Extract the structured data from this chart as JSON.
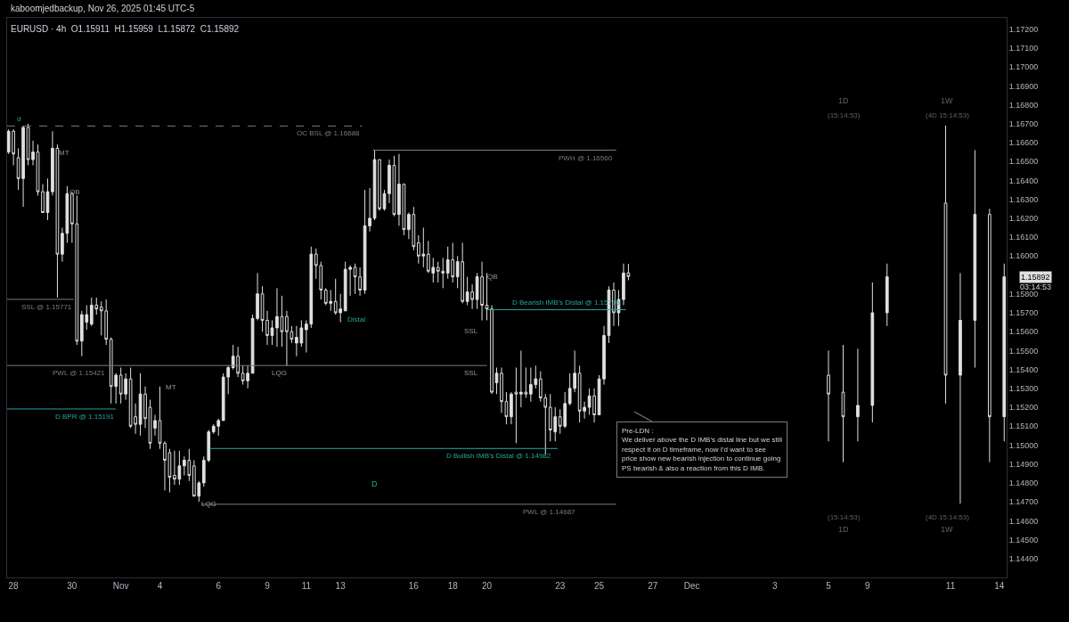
{
  "chart_data": {
    "type": "candlestick",
    "title": "EURUSD · 4h",
    "subtitle": "O1.15911  H1.15959  L1.15872  C1.15892",
    "categories": [
      null,
      "28",
      null,
      null,
      null,
      null,
      null,
      null,
      null,
      null,
      null,
      null,
      null,
      "30",
      null,
      null,
      null,
      null,
      null,
      null,
      null,
      null,
      null,
      "Nov",
      null,
      null,
      null,
      null,
      null,
      null,
      null,
      "4",
      null,
      null,
      null,
      null,
      null,
      null,
      null,
      null,
      null,
      null,
      null,
      "6",
      null,
      null,
      null,
      null,
      null,
      null,
      null,
      null,
      null,
      "9",
      null,
      null,
      null,
      null,
      null,
      null,
      null,
      "11",
      null,
      null,
      null,
      null,
      null,
      null,
      "13",
      null,
      null,
      null,
      null,
      null,
      null,
      null,
      null,
      null,
      null,
      null,
      null,
      null,
      null,
      "16",
      null,
      null,
      null,
      null,
      null,
      null,
      null,
      "18",
      null,
      null,
      null,
      null,
      null,
      null,
      "20",
      null,
      null,
      null,
      null,
      null,
      null,
      null,
      null,
      null,
      null,
      null,
      null,
      null,
      null,
      "23",
      null,
      null,
      null,
      null,
      null,
      null,
      null,
      "25",
      null,
      null,
      null,
      null,
      null,
      null,
      null,
      null,
      null,
      null,
      "27",
      null,
      null,
      null,
      null,
      null,
      null,
      null,
      "Dec",
      null,
      null,
      null,
      null,
      null,
      null,
      null,
      null,
      null,
      null,
      null,
      null,
      null,
      null,
      null,
      null,
      "3",
      null,
      null,
      null,
      null,
      null,
      null,
      null,
      null,
      null,
      null,
      "5",
      null,
      null,
      null,
      null,
      null,
      null,
      null,
      "9",
      null,
      null,
      null,
      null,
      null,
      null,
      null,
      null,
      null,
      null,
      null,
      null,
      null,
      null,
      null,
      null,
      "11",
      null,
      null,
      null,
      null,
      null,
      null,
      null,
      null,
      null,
      "14",
      null
    ],
    "series": [
      {
        "color": "#e0e0e0",
        "ohlc": [
          [
            1.1655,
            1.1667,
            1.1654,
            1.1666
          ],
          [
            1.1666,
            1.1667,
            1.1648,
            1.1654
          ],
          [
            1.1652,
            1.1657,
            1.1635,
            1.1641
          ],
          [
            1.1641,
            1.1669,
            1.1626,
            1.1668
          ],
          [
            1.1668,
            1.167,
            1.1648,
            1.1651
          ],
          [
            1.1651,
            1.1661,
            1.1648,
            1.1655
          ],
          [
            1.1655,
            1.1659,
            1.1632,
            1.1634
          ],
          [
            1.1634,
            1.1638,
            1.1623,
            1.1623
          ],
          [
            1.1623,
            1.1641,
            1.1619,
            1.1634
          ],
          [
            1.1634,
            1.1666,
            1.1632,
            1.1657
          ],
          [
            1.1657,
            1.1659,
            1.1578,
            1.1601
          ],
          [
            1.1601,
            1.1615,
            1.1597,
            1.1612
          ],
          [
            1.1612,
            1.1637,
            1.1607,
            1.1633
          ],
          [
            1.1633,
            1.1634,
            1.1607,
            1.1617
          ],
          [
            1.1617,
            1.1632,
            1.1553,
            1.1555
          ],
          [
            1.1555,
            1.1571,
            1.1547,
            1.1569
          ],
          [
            1.1565,
            1.1574,
            1.1561,
            1.1569
          ],
          [
            1.1564,
            1.1578,
            1.1563,
            1.1574
          ],
          [
            1.1574,
            1.1578,
            1.1569,
            1.1572
          ],
          [
            1.1573,
            1.1576,
            1.1558,
            1.1571
          ],
          [
            1.1571,
            1.1577,
            1.1553,
            1.1556
          ],
          [
            1.1556,
            1.1557,
            1.1522,
            1.1531
          ],
          [
            1.1531,
            1.1538,
            1.1522,
            1.1537
          ],
          [
            1.1537,
            1.1541,
            1.1522,
            1.1527
          ],
          [
            1.1527,
            1.1538,
            1.1524,
            1.1535
          ],
          [
            1.1535,
            1.1541,
            1.1509,
            1.151
          ],
          [
            1.1515,
            1.1522,
            1.1506,
            1.1511
          ],
          [
            1.1511,
            1.1538,
            1.1505,
            1.1527
          ],
          [
            1.1527,
            1.1531,
            1.1509,
            1.1514
          ],
          [
            1.152,
            1.1524,
            1.1498,
            1.1501
          ],
          [
            1.1509,
            1.1516,
            1.1505,
            1.1513
          ],
          [
            1.1513,
            1.1531,
            1.1498,
            1.1501
          ],
          [
            1.1501,
            1.1502,
            1.1476,
            1.1492
          ],
          [
            1.1496,
            1.1498,
            1.1475,
            1.1483
          ],
          [
            1.1484,
            1.1497,
            1.1479,
            1.1482
          ],
          [
            1.1482,
            1.1497,
            1.1479,
            1.1489
          ],
          [
            1.1489,
            1.1494,
            1.1484,
            1.1492
          ],
          [
            1.1492,
            1.1498,
            1.1481,
            1.1484
          ],
          [
            1.1489,
            1.1492,
            1.1473,
            1.1473
          ],
          [
            1.1473,
            1.1481,
            1.147,
            1.148
          ],
          [
            1.148,
            1.1494,
            1.1478,
            1.1492
          ],
          [
            1.1492,
            1.1508,
            1.1491,
            1.1507
          ],
          [
            1.1507,
            1.1511,
            1.1506,
            1.151
          ],
          [
            1.151,
            1.1514,
            1.1505,
            1.1513
          ],
          [
            1.1513,
            1.1538,
            1.1513,
            1.1536
          ],
          [
            1.1536,
            1.1542,
            1.1527,
            1.1541
          ],
          [
            1.1541,
            1.1553,
            1.154,
            1.1547
          ],
          [
            1.1547,
            1.1552,
            1.1536,
            1.1538
          ],
          [
            1.1538,
            1.1542,
            1.1532,
            1.1534
          ],
          [
            1.1534,
            1.1542,
            1.153,
            1.1538
          ],
          [
            1.1538,
            1.1569,
            1.1538,
            1.1567
          ],
          [
            1.1567,
            1.1591,
            1.1566,
            1.158
          ],
          [
            1.158,
            1.1584,
            1.156,
            1.1566
          ],
          [
            1.1566,
            1.1571,
            1.1553,
            1.1558
          ],
          [
            1.1558,
            1.1566,
            1.1553,
            1.1562
          ],
          [
            1.1562,
            1.1583,
            1.1552,
            1.1568
          ],
          [
            1.1568,
            1.1579,
            1.1552,
            1.156
          ],
          [
            1.1568,
            1.1571,
            1.1542,
            1.156
          ],
          [
            1.156,
            1.1563,
            1.1554,
            1.1556
          ],
          [
            1.1554,
            1.1563,
            1.1547,
            1.1557
          ],
          [
            1.1554,
            1.1566,
            1.1552,
            1.1562
          ],
          [
            1.1561,
            1.1566,
            1.1549,
            1.1564
          ],
          [
            1.1564,
            1.1605,
            1.1562,
            1.1601
          ],
          [
            1.1601,
            1.1604,
            1.1588,
            1.1595
          ],
          [
            1.1595,
            1.1597,
            1.1577,
            1.1582
          ],
          [
            1.1582,
            1.1583,
            1.1574,
            1.1575
          ],
          [
            1.1575,
            1.1582,
            1.1571,
            1.1576
          ],
          [
            1.1576,
            1.1588,
            1.1569,
            1.157
          ],
          [
            1.157,
            1.158,
            1.1565,
            1.1572
          ],
          [
            1.1571,
            1.1597,
            1.1571,
            1.1593
          ],
          [
            1.1593,
            1.1595,
            1.1579,
            1.1594
          ],
          [
            1.1594,
            1.1596,
            1.158,
            1.1589
          ],
          [
            1.1589,
            1.1594,
            1.1579,
            1.1582
          ],
          [
            1.1582,
            1.1635,
            1.158,
            1.1616
          ],
          [
            1.1616,
            1.1636,
            1.1613,
            1.162
          ],
          [
            1.162,
            1.1656,
            1.1619,
            1.1651
          ],
          [
            1.1651,
            1.1651,
            1.1624,
            1.1625
          ],
          [
            1.1625,
            1.1635,
            1.1624,
            1.1633
          ],
          [
            1.1633,
            1.1651,
            1.1628,
            1.1648
          ],
          [
            1.1648,
            1.1653,
            1.1621,
            1.1622
          ],
          [
            1.1622,
            1.1654,
            1.1616,
            1.1638
          ],
          [
            1.1638,
            1.1638,
            1.1611,
            1.1614
          ],
          [
            1.1614,
            1.1623,
            1.1609,
            1.1622
          ],
          [
            1.1622,
            1.1626,
            1.1603,
            1.1605
          ],
          [
            1.1607,
            1.1611,
            1.1596,
            1.16
          ],
          [
            1.16,
            1.1615,
            1.1594,
            1.1601
          ],
          [
            1.1601,
            1.1608,
            1.1591,
            1.1592
          ],
          [
            1.1591,
            1.1599,
            1.1586,
            1.1594
          ],
          [
            1.1594,
            1.1597,
            1.1586,
            1.1592
          ],
          [
            1.1592,
            1.1599,
            1.1583,
            1.1591
          ],
          [
            1.1591,
            1.1605,
            1.1588,
            1.1598
          ],
          [
            1.1598,
            1.1607,
            1.1586,
            1.1589
          ],
          [
            1.1589,
            1.16,
            1.1583,
            1.1597
          ],
          [
            1.1597,
            1.1607,
            1.1575,
            1.1576
          ],
          [
            1.1576,
            1.1589,
            1.1574,
            1.1581
          ],
          [
            1.1581,
            1.1585,
            1.1572,
            1.1577
          ],
          [
            1.1577,
            1.1591,
            1.1572,
            1.1589
          ],
          [
            1.1589,
            1.1597,
            1.1566,
            1.1574
          ],
          [
            1.1574,
            1.1591,
            1.1566,
            1.1572
          ],
          [
            1.1572,
            1.1574,
            1.1527,
            1.1528
          ],
          [
            1.1533,
            1.1541,
            1.1527,
            1.1538
          ],
          [
            1.1538,
            1.1541,
            1.1517,
            1.1523
          ],
          [
            1.1523,
            1.1528,
            1.1511,
            1.1515
          ],
          [
            1.1515,
            1.1528,
            1.1511,
            1.1527
          ],
          [
            1.1528,
            1.1541,
            1.1501,
            1.1527
          ],
          [
            1.1527,
            1.155,
            1.152,
            1.1528
          ],
          [
            1.1528,
            1.1541,
            1.1525,
            1.1527
          ],
          [
            1.1527,
            1.1541,
            1.1523,
            1.1532
          ],
          [
            1.1532,
            1.1542,
            1.153,
            1.1535
          ],
          [
            1.1535,
            1.1539,
            1.1523,
            1.1525
          ],
          [
            1.1525,
            1.1527,
            1.1495,
            1.152
          ],
          [
            1.152,
            1.1527,
            1.1502,
            1.1508
          ],
          [
            1.1507,
            1.152,
            1.1502,
            1.1515
          ],
          [
            1.1515,
            1.1519,
            1.1506,
            1.151
          ],
          [
            1.151,
            1.1528,
            1.1509,
            1.1522
          ],
          [
            1.1522,
            1.1538,
            1.1521,
            1.153
          ],
          [
            1.153,
            1.155,
            1.1528,
            1.1538
          ],
          [
            1.1538,
            1.1542,
            1.1512,
            1.1518
          ],
          [
            1.1518,
            1.1523,
            1.1514,
            1.152
          ],
          [
            1.152,
            1.153,
            1.1516,
            1.1526
          ],
          [
            1.1526,
            1.153,
            1.1512,
            1.1516
          ],
          [
            1.1516,
            1.1537,
            1.1516,
            1.1535
          ],
          [
            1.1535,
            1.1563,
            1.1532,
            1.1558
          ],
          [
            1.1558,
            1.1584,
            1.1554,
            1.1582
          ],
          [
            1.1582,
            1.1586,
            1.1563,
            1.157
          ],
          [
            1.157,
            1.1582,
            1.1563,
            1.1577
          ],
          [
            1.1577,
            1.1596,
            1.1574,
            1.1591
          ],
          [
            1.15911,
            1.15959,
            1.15872,
            1.15892
          ],
          null,
          null,
          null,
          null,
          null,
          null,
          null,
          null,
          null,
          null,
          null,
          null,
          null,
          null,
          null,
          null,
          null,
          null,
          null,
          null,
          null,
          null,
          null,
          null,
          null,
          null,
          null,
          null,
          null,
          null,
          null,
          null,
          null,
          null,
          null,
          null,
          null,
          null,
          null,
          null,
          [
            1.1537,
            1.155,
            1.1502,
            1.1527
          ],
          null,
          null,
          [
            1.1528,
            1.1553,
            1.1491,
            1.1515
          ],
          null,
          null,
          [
            1.1515,
            1.1551,
            1.1502,
            1.1521
          ],
          null,
          null,
          [
            1.1521,
            1.1586,
            1.1512,
            1.157
          ],
          null,
          null,
          [
            1.157,
            1.1596,
            1.1563,
            1.1589
          ],
          null,
          null,
          null,
          null,
          null,
          null,
          null,
          null,
          null,
          null,
          null,
          [
            1.1628,
            1.1669,
            1.1522,
            1.1537
          ],
          null,
          null,
          [
            1.1537,
            1.1591,
            1.1469,
            1.1566
          ],
          null,
          null,
          [
            1.1566,
            1.1656,
            1.1541,
            1.1622
          ],
          null,
          null,
          [
            1.1622,
            1.1625,
            1.1491,
            1.1515
          ],
          null,
          null,
          [
            1.1515,
            1.1596,
            1.1502,
            1.1589
          ]
        ]
      }
    ],
    "ylim": [
      1.143,
      1.1726
    ],
    "yticks": [
      {
        "value": 1.144,
        "label": "1.14400"
      },
      {
        "value": 1.145,
        "label": "1.14500"
      },
      {
        "value": 1.146,
        "label": "1.14600"
      },
      {
        "value": 1.147,
        "label": "1.14700"
      },
      {
        "value": 1.148,
        "label": "1.14800"
      },
      {
        "value": 1.149,
        "label": "1.14900"
      },
      {
        "value": 1.15,
        "label": "1.15000"
      },
      {
        "value": 1.151,
        "label": "1.15100"
      },
      {
        "value": 1.152,
        "label": "1.15200"
      },
      {
        "value": 1.153,
        "label": "1.15300"
      },
      {
        "value": 1.154,
        "label": "1.15400"
      },
      {
        "value": 1.155,
        "label": "1.15500"
      },
      {
        "value": 1.156,
        "label": "1.15600"
      },
      {
        "value": 1.157,
        "label": "1.15700"
      },
      {
        "value": 1.158,
        "label": "1.15800"
      },
      {
        "value": 1.16,
        "label": "1.16000"
      },
      {
        "value": 1.161,
        "label": "1.16100"
      },
      {
        "value": 1.162,
        "label": "1.16200"
      },
      {
        "value": 1.163,
        "label": "1.16300"
      },
      {
        "value": 1.164,
        "label": "1.16400"
      },
      {
        "value": 1.165,
        "label": "1.16500"
      },
      {
        "value": 1.166,
        "label": "1.16600"
      },
      {
        "value": 1.167,
        "label": "1.16700"
      },
      {
        "value": 1.168,
        "label": "1.16800"
      },
      {
        "value": 1.169,
        "label": "1.16900"
      },
      {
        "value": 1.17,
        "label": "1.17000"
      },
      {
        "value": 1.171,
        "label": "1.17100"
      },
      {
        "value": 1.172,
        "label": "1.17200"
      }
    ],
    "grid": false,
    "ref_lines": [
      {
        "axis": "y",
        "value": 1.16688,
        "label": "OC BSL @ 1.16688",
        "color": "#787b86",
        "line_style": "dashed"
      },
      {
        "axis": "y",
        "value": 1.1656,
        "label": "PWH @ 1.16560",
        "color": "#787b86",
        "line_style": "solid"
      },
      {
        "axis": "y",
        "value": 1.15771,
        "label": "SSL @ 1.15771",
        "color": "#787b86",
        "line_style": "solid"
      },
      {
        "axis": "y",
        "value": 1.15421,
        "label": "PWL @ 1.15421",
        "color": "#787b86",
        "line_style": "solid"
      },
      {
        "axis": "y",
        "value": 1.15191,
        "label": "D BPR @ 1.15191",
        "color": "#26a69a",
        "line_style": "solid"
      },
      {
        "axis": "y",
        "value": 1.15716,
        "label": "D Bearish IMB's Distal @ 1.15716",
        "color": "#26a69a",
        "line_style": "solid"
      },
      {
        "axis": "y",
        "value": 1.14982,
        "label": "D Bullish IMB's Distal @ 1.14982",
        "color": "#26a69a",
        "line_style": "solid"
      },
      {
        "axis": "y",
        "value": 1.14687,
        "label": "PWL @ 1.14687",
        "color": "#787b86",
        "line_style": "solid"
      }
    ],
    "annotations": [
      "kaboomjedbackup, Nov 26, 2025 01:45 UTC-5",
      "1D",
      "(15:14:53)",
      "1W",
      "(4D 15:14:53)",
      "(15:14:53)",
      "1D",
      "(4D 15:14:53)",
      "1W",
      "1.15892",
      "03:14:53",
      "d",
      "MT",
      "QB",
      "MT",
      "LQG",
      "LQG",
      "Distal",
      "QB",
      "SSL",
      "SSL",
      "D",
      "Pre-LDN :\nWe deliver above the D IMB's distal line but we still\nrespect it on D timeframe, now I'd want to see\nprice show new bearish injection to continue going\nPS bearish & also a reaction from this D IMB."
    ]
  }
}
